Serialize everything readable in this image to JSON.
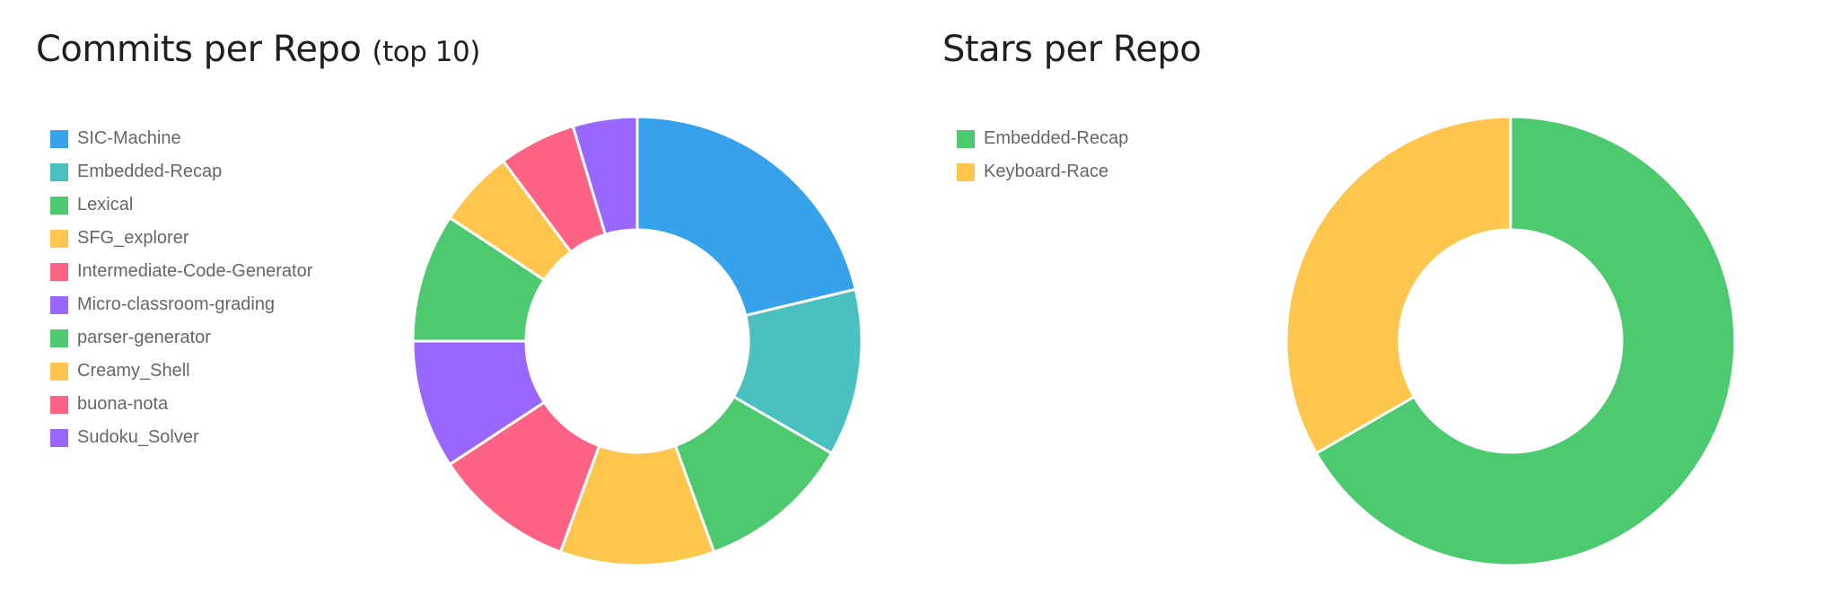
{
  "chart_data": [
    {
      "type": "pie",
      "variant": "doughnut",
      "title": "Commits per Repo",
      "subtitle": "(top 10)",
      "legend_position": "left",
      "categories": [
        "SIC-Machine",
        "Embedded-Recap",
        "Lexical",
        "SFG_explorer",
        "Intermediate-Code-Generator",
        "Micro-classroom-grading",
        "parser-generator",
        "Creamy_Shell",
        "buona-nota",
        "Sudoku_Solver"
      ],
      "values": [
        23,
        13,
        12,
        12,
        11,
        10,
        10,
        6,
        6,
        5
      ],
      "colors": [
        "#36a2eb",
        "#4bc0c0",
        "#4dc96f",
        "#ffc64d",
        "#ff6384",
        "#9966ff",
        "#4dc96f",
        "#ffc64d",
        "#ff6384",
        "#9966ff"
      ]
    },
    {
      "type": "pie",
      "variant": "doughnut",
      "title": "Stars per Repo",
      "legend_position": "left",
      "categories": [
        "Embedded-Recap",
        "Keyboard-Race"
      ],
      "values": [
        2,
        1
      ],
      "colors": [
        "#4dc96f",
        "#ffc64d"
      ]
    }
  ]
}
